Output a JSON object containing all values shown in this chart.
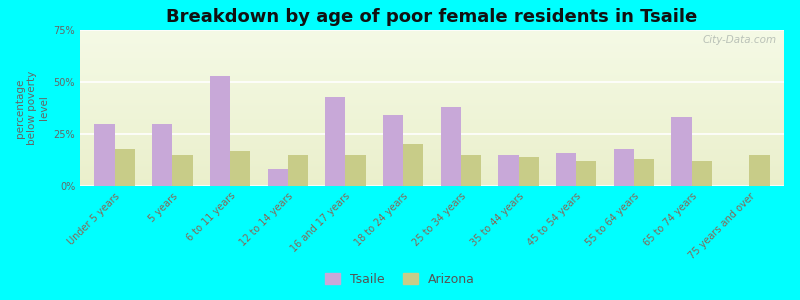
{
  "title": "Breakdown by age of poor female residents in Tsaile",
  "ylabel": "percentage\nbelow poverty\nlevel",
  "categories": [
    "Under 5 years",
    "5 years",
    "6 to 11 years",
    "12 to 14 years",
    "16 and 17 years",
    "18 to 24 years",
    "25 to 34 years",
    "35 to 44 years",
    "45 to 54 years",
    "55 to 64 years",
    "65 to 74 years",
    "75 years and over"
  ],
  "tsaile_values": [
    30,
    30,
    53,
    8,
    43,
    34,
    38,
    15,
    16,
    18,
    33,
    0
  ],
  "arizona_values": [
    18,
    15,
    17,
    15,
    15,
    20,
    15,
    14,
    12,
    13,
    12,
    15
  ],
  "tsaile_color": "#c8a8d8",
  "arizona_color": "#c8cc88",
  "background_color": "#00ffff",
  "ylim": [
    0,
    75
  ],
  "yticks": [
    0,
    25,
    50,
    75
  ],
  "ytick_labels": [
    "0%",
    "25%",
    "50%",
    "75%"
  ],
  "title_fontsize": 13,
  "axis_label_fontsize": 7.5,
  "tick_fontsize": 7,
  "legend_fontsize": 9,
  "bar_width": 0.35,
  "watermark": "City-Data.com"
}
